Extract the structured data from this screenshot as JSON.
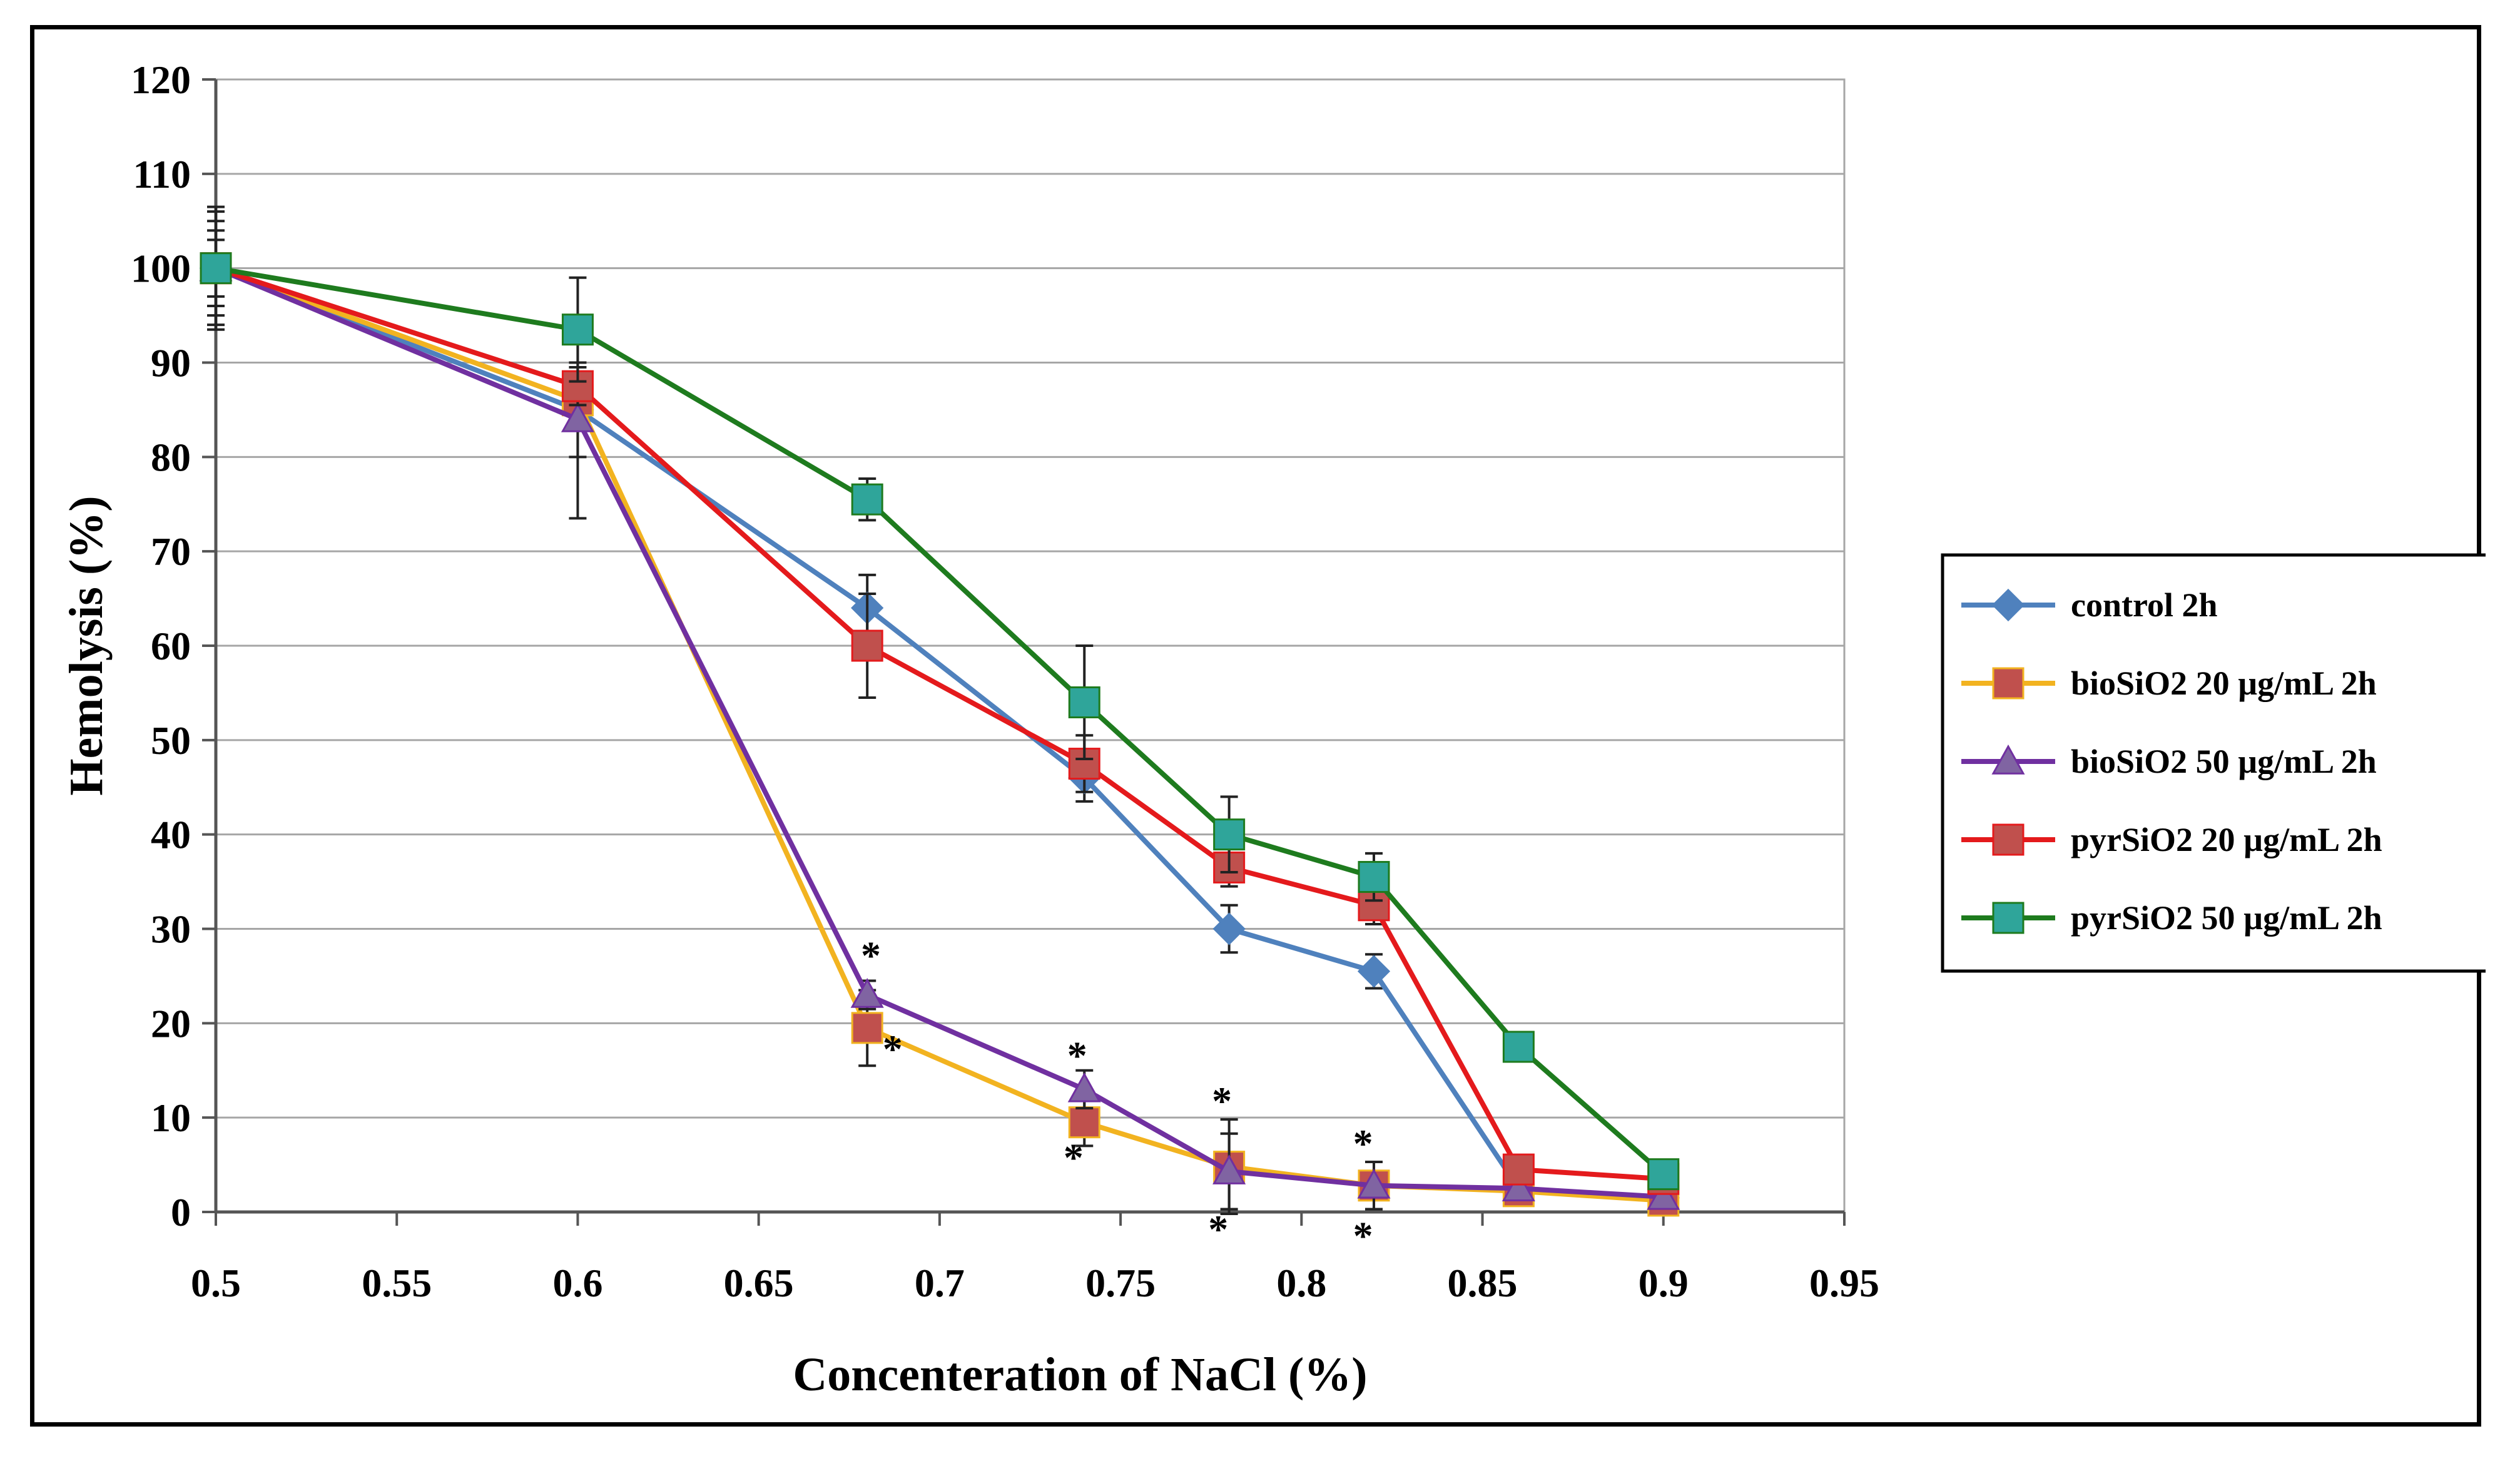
{
  "chart_data": {
    "type": "line",
    "title": "",
    "xlabel": "Concenteration of NaCl (%)",
    "ylabel": "Hemolysis (%)",
    "xlim": [
      0.5,
      0.95
    ],
    "ylim": [
      0,
      120
    ],
    "x_ticks": [
      "0.5",
      "0.55",
      "0.6",
      "0.65",
      "0.7",
      "0.75",
      "0.8",
      "0.85",
      "0.9",
      "0.95"
    ],
    "y_ticks": [
      "0",
      "10",
      "20",
      "30",
      "40",
      "50",
      "60",
      "70",
      "80",
      "90",
      "100",
      "110",
      "120"
    ],
    "grid": "horizontal",
    "legend_position": "right",
    "series": [
      {
        "name": "control 2h",
        "color": "#4F81BD",
        "marker": "diamond",
        "x": [
          0.5,
          0.6,
          0.68,
          0.74,
          0.78,
          0.82,
          0.86,
          0.9
        ],
        "y": [
          100,
          85,
          64,
          46,
          30,
          25.5,
          2.5,
          1.5
        ],
        "err": [
          6,
          5,
          3.5,
          2.5,
          2.5,
          1.8,
          1,
          0.8
        ]
      },
      {
        "name": "bioSiO2 20 µg/mL 2h",
        "color": "#F2B320",
        "marker_color": "#C0504D",
        "marker": "square",
        "x": [
          0.5,
          0.6,
          0.68,
          0.74,
          0.78,
          0.82,
          0.86,
          0.9
        ],
        "y": [
          100,
          86,
          19.5,
          9.5,
          4.8,
          2.8,
          2.2,
          1.2
        ],
        "err": [
          4,
          3,
          4,
          2.5,
          5,
          2.5,
          1,
          0.8
        ]
      },
      {
        "name": "bioSiO2 50 µg/mL 2h",
        "color": "#7030A0",
        "marker_color": "#8064A2",
        "marker": "triangle",
        "x": [
          0.5,
          0.6,
          0.68,
          0.74,
          0.78,
          0.82,
          0.86,
          0.9
        ],
        "y": [
          100,
          84,
          23,
          13,
          4.3,
          2.8,
          2.5,
          1.6
        ],
        "err": [
          5,
          10.5,
          1.5,
          2,
          4,
          2.5,
          1,
          0.8
        ]
      },
      {
        "name": "pyrSiO2 20 µg/mL 2h",
        "color": "#E41A1C",
        "marker_color": "#C0504D",
        "marker": "square",
        "x": [
          0.5,
          0.6,
          0.68,
          0.74,
          0.78,
          0.82,
          0.86,
          0.9
        ],
        "y": [
          100,
          87.5,
          60,
          47.5,
          36.5,
          32.5,
          4.5,
          3.5
        ],
        "err": [
          3,
          2,
          5.5,
          3,
          2,
          2,
          1,
          1
        ]
      },
      {
        "name": "pyrSiO2 50 µg/mL 2h",
        "color": "#1E7B1E",
        "marker_color": "#2FA59A",
        "marker": "square",
        "x": [
          0.5,
          0.6,
          0.68,
          0.74,
          0.78,
          0.82,
          0.86,
          0.9
        ],
        "y": [
          100,
          93.5,
          75.5,
          54,
          40,
          35.5,
          17.5,
          4
        ],
        "err": [
          6.5,
          5.5,
          2.2,
          6,
          4,
          2.5,
          1.2,
          1
        ]
      }
    ],
    "annotations": [
      {
        "text": "*",
        "x": 0.681,
        "y": 27.2
      },
      {
        "text": "*",
        "x": 0.687,
        "y": 17.3
      },
      {
        "text": "*",
        "x": 0.738,
        "y": 16.6
      },
      {
        "text": "*",
        "x": 0.737,
        "y": 5.8
      },
      {
        "text": "*",
        "x": 0.778,
        "y": 11.8
      },
      {
        "text": "*",
        "x": 0.777,
        "y": -1.8
      },
      {
        "text": "*",
        "x": 0.817,
        "y": 7.3
      },
      {
        "text": "*",
        "x": 0.817,
        "y": -2.5
      }
    ]
  }
}
